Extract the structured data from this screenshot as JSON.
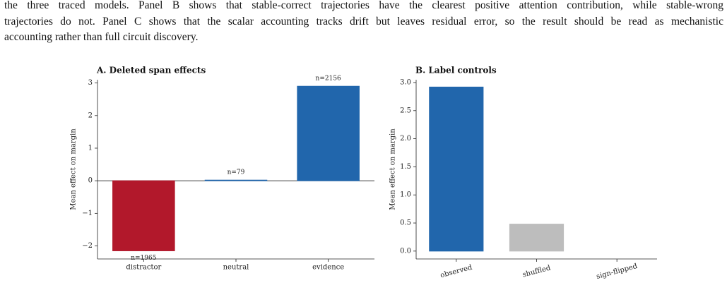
{
  "text": {
    "lines": [
      "the three traced models. Panel B shows that stable-correct trajectories have the clearest positive attention contribution, while stable-wrong",
      "trajectories do not. Panel C shows that the scalar accounting tracks drift but leaves residual error, so the result should be read as mechanistic",
      "accounting rather than full circuit discovery."
    ]
  },
  "chart_data": [
    {
      "type": "bar",
      "title": "A. Deleted span effects",
      "y_label": "Mean effect on margin",
      "categories": [
        "distractor",
        "neutral",
        "evidence"
      ],
      "values": [
        -2.15,
        0.02,
        2.9
      ],
      "colors": [
        "#b2182b",
        "#2166ac",
        "#2166ac"
      ],
      "annotations": [
        "n=1965",
        "n=79",
        "n=2156"
      ],
      "ylim": [
        -2.4,
        3.1
      ],
      "yticks": [
        {
          "value": -2,
          "label": "−2"
        },
        {
          "value": -1,
          "label": "−1"
        },
        0,
        1,
        2,
        3
      ],
      "zero_line": true
    },
    {
      "type": "bar",
      "title": "B. Label controls",
      "y_label": "Mean effect on margin",
      "categories": [
        "observed",
        "shuffled",
        "sign-flipped"
      ],
      "values": [
        2.92,
        0.48,
        0.0
      ],
      "colors": [
        "#2166ac",
        "#bdbdbd",
        "#333333"
      ],
      "ylim": [
        -0.14,
        3.05
      ],
      "yticks": [
        {
          "value": 0,
          "label": "0.0"
        },
        0.5,
        {
          "value": 1,
          "label": "1.0"
        },
        1.5,
        {
          "value": 2,
          "label": "2.0"
        },
        2.5,
        {
          "value": 3,
          "label": "3.0"
        }
      ],
      "zero_line": false
    }
  ]
}
